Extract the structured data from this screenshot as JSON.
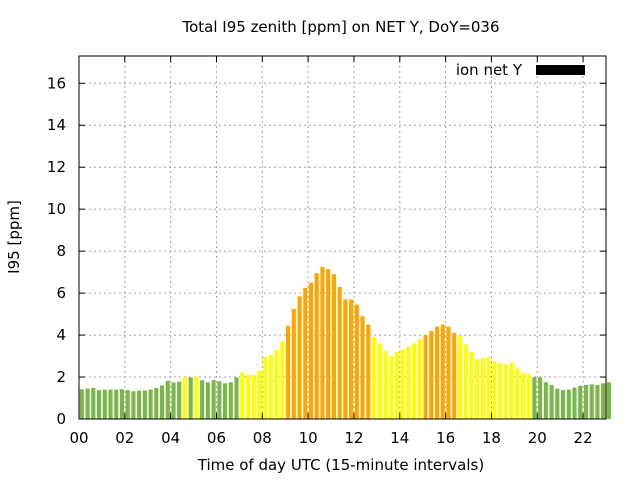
{
  "chart_data": {
    "type": "bar",
    "title": "Total I95 zenith [ppm] on NET Y, DoY=036",
    "xlabel": "Time of day UTC (15-minute intervals)",
    "ylabel": "I95 [ppm]",
    "legend": {
      "label": "ion net Y",
      "placement": "top-right",
      "color": "#000000"
    },
    "grid": true,
    "xlim": [
      0,
      23
    ],
    "ylim": [
      0,
      17.3
    ],
    "x_ticks": [
      "00",
      "02",
      "04",
      "06",
      "08",
      "10",
      "12",
      "14",
      "16",
      "18",
      "20",
      "22"
    ],
    "y_ticks": [
      "0",
      "2",
      "4",
      "6",
      "8",
      "10",
      "12",
      "14",
      "16"
    ],
    "colors": {
      "green": "#7ab648",
      "yellow": "#ffff00",
      "orange": "#ffa500"
    },
    "thresholds": {
      "yellow_from": 2.0,
      "orange_from": 4.0
    },
    "x_step_hours": 0.25,
    "values": [
      1.42,
      1.45,
      1.48,
      1.38,
      1.4,
      1.4,
      1.4,
      1.42,
      1.38,
      1.32,
      1.35,
      1.36,
      1.4,
      1.48,
      1.6,
      1.82,
      1.74,
      1.78,
      2.0,
      1.98,
      2.02,
      1.85,
      1.75,
      1.86,
      1.8,
      1.7,
      1.75,
      1.98,
      2.22,
      2.1,
      2.1,
      2.3,
      2.95,
      3.05,
      3.3,
      3.7,
      4.45,
      5.25,
      5.85,
      6.25,
      6.5,
      6.95,
      7.25,
      7.15,
      6.9,
      6.3,
      5.7,
      5.7,
      5.45,
      4.9,
      4.5,
      3.9,
      3.6,
      3.25,
      3.0,
      3.2,
      3.3,
      3.45,
      3.6,
      3.8,
      4.0,
      4.2,
      4.4,
      4.5,
      4.4,
      4.1,
      3.95,
      3.55,
      3.2,
      2.85,
      2.9,
      2.95,
      2.75,
      2.65,
      2.6,
      2.7,
      2.4,
      2.2,
      2.15,
      1.98,
      1.98,
      1.75,
      1.62,
      1.45,
      1.38,
      1.4,
      1.5,
      1.58,
      1.62,
      1.65,
      1.62,
      1.7,
      1.75
    ]
  }
}
